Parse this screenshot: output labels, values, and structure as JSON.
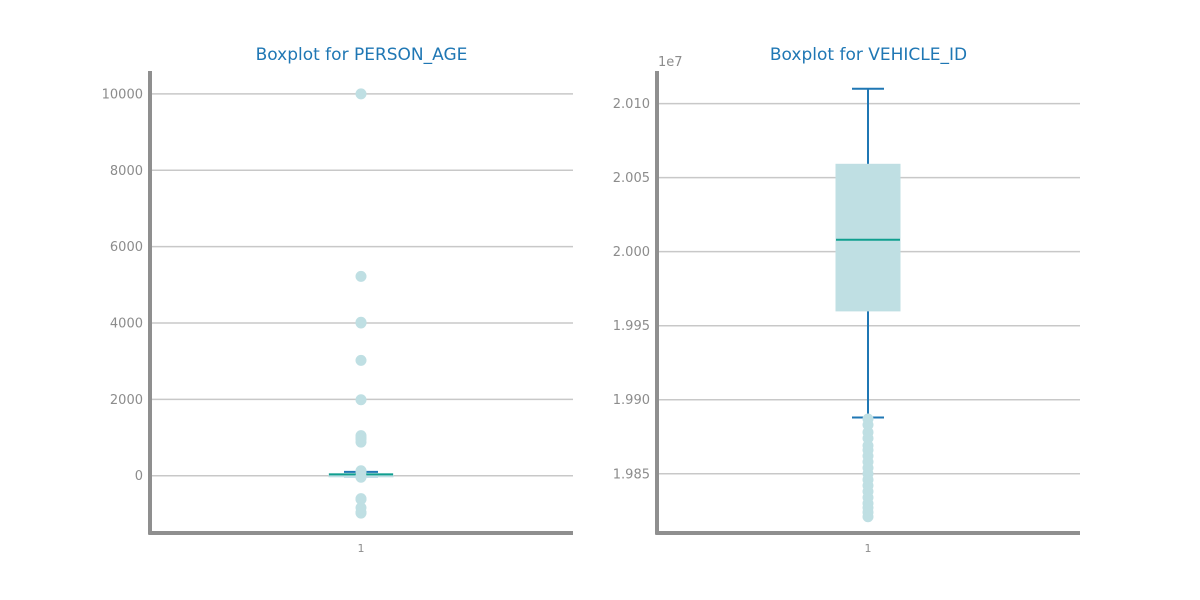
{
  "colors": {
    "title": "#1f77b4",
    "tick_text": "#8c8c8c",
    "grid": "#c8c8c8",
    "spine": "#8f8f8f",
    "box_fill": "#bfdfe3",
    "median": "#109f8f",
    "whisker": "#1f77b4",
    "flier": "#bfdfe3"
  },
  "chart_data": [
    {
      "type": "box",
      "title": "Boxplot for PERSON_AGE",
      "xlabel": "",
      "ylabel": "",
      "categories": [
        "1"
      ],
      "ylim": [
        -1500,
        10600
      ],
      "yticks": [
        0,
        2000,
        4000,
        6000,
        8000,
        10000
      ],
      "ytick_labels": [
        "0",
        "2000",
        "4000",
        "6000",
        "8000",
        "10000"
      ],
      "offset_label": "",
      "grid": true,
      "box": {
        "q1": 20,
        "median": 35,
        "q3": 50,
        "whisker_low": -20,
        "whisker_high": 100
      },
      "fliers": [
        10000,
        5220,
        4020,
        4000,
        3020,
        1990,
        1050,
        1000,
        960,
        880,
        130,
        110,
        -10,
        -40,
        -600,
        -620,
        -840,
        -960,
        -980
      ]
    },
    {
      "type": "box",
      "title": "Boxplot for VEHICLE_ID",
      "xlabel": "",
      "ylabel": "",
      "categories": [
        "1"
      ],
      "ylim": [
        1.981,
        2.0122
      ],
      "yticks": [
        1.985,
        1.99,
        1.995,
        2.0,
        2.005,
        2.01
      ],
      "ytick_labels": [
        "1.985",
        "1.990",
        "1.995",
        "2.000",
        "2.005",
        "2.010"
      ],
      "offset_label": "1e7",
      "grid": true,
      "box": {
        "q1": 1.996,
        "median": 2.0008,
        "q3": 2.0059,
        "whisker_low": 1.9888,
        "whisker_high": 2.011
      },
      "fliers": [
        1.9887,
        1.9883,
        1.9878,
        1.9874,
        1.9869,
        1.9866,
        1.9862,
        1.9858,
        1.9854,
        1.985,
        1.9846,
        1.9842,
        1.9838,
        1.9834,
        1.983,
        1.9827,
        1.9824,
        1.9821
      ]
    }
  ]
}
